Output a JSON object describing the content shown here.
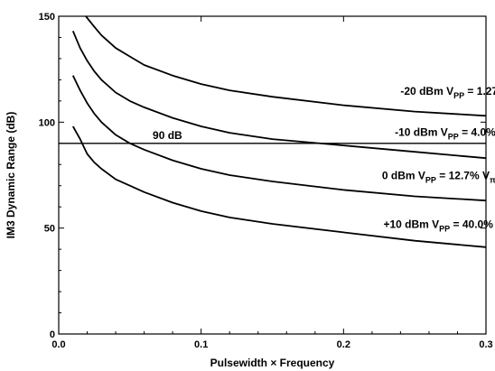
{
  "chart_data": {
    "type": "line",
    "xlabel": "Pulsewidth × Frequency",
    "ylabel": "IM3 Dynamic Range (dB)",
    "xlim": [
      0.0,
      0.3
    ],
    "ylim": [
      0,
      150
    ],
    "xticks": [
      0.0,
      0.1,
      0.2,
      0.3
    ],
    "xtick_labels": [
      "0.0",
      "0.1",
      "0.2",
      "0.3"
    ],
    "yticks": [
      0,
      50,
      100,
      150
    ],
    "ytick_labels": [
      "0",
      "50",
      "100",
      "150"
    ],
    "grid": false,
    "reference_line": {
      "y": 90,
      "label": "90 dB"
    },
    "series": [
      {
        "label": {
          "main": "-20 dBm  V",
          "sub": "PP",
          "mid": " = 1.27% V",
          "sub2": "π"
        },
        "x": [
          0.019,
          0.025,
          0.03,
          0.04,
          0.05,
          0.06,
          0.08,
          0.1,
          0.12,
          0.15,
          0.2,
          0.25,
          0.3
        ],
        "y": [
          150,
          145,
          141,
          135,
          131,
          127,
          122,
          118,
          115,
          112,
          108,
          105,
          103
        ]
      },
      {
        "label": {
          "main": "-10 dBm  V",
          "sub": "PP",
          "mid": " = 4.0% V",
          "sub2": "π"
        },
        "x": [
          0.01,
          0.015,
          0.02,
          0.025,
          0.03,
          0.04,
          0.05,
          0.06,
          0.08,
          0.1,
          0.12,
          0.15,
          0.2,
          0.25,
          0.3
        ],
        "y": [
          143,
          135,
          129,
          124,
          120,
          114,
          110,
          107,
          102,
          98,
          95,
          92,
          89,
          86,
          83
        ]
      },
      {
        "label": {
          "main": "0 dBm  V",
          "sub": "PP",
          "mid": " = 12.7% V",
          "sub2": "π"
        },
        "x": [
          0.01,
          0.015,
          0.02,
          0.025,
          0.03,
          0.04,
          0.05,
          0.06,
          0.08,
          0.1,
          0.12,
          0.15,
          0.2,
          0.25,
          0.3
        ],
        "y": [
          122,
          115,
          109,
          104,
          100,
          94,
          90,
          87,
          82,
          78,
          75,
          72,
          68,
          65,
          63
        ]
      },
      {
        "label": {
          "main": "+10 dBm  V",
          "sub": "PP",
          "mid": " = 40.0% V",
          "sub2": "π"
        },
        "x": [
          0.01,
          0.015,
          0.02,
          0.025,
          0.03,
          0.04,
          0.05,
          0.06,
          0.08,
          0.1,
          0.12,
          0.15,
          0.2,
          0.25,
          0.3
        ],
        "y": [
          98,
          92,
          85,
          81,
          78,
          73,
          70,
          67,
          62,
          58,
          55,
          52,
          48,
          44,
          41
        ]
      }
    ],
    "annotation_anchors": [
      {
        "x": 0.24,
        "y": 113
      },
      {
        "x": 0.236,
        "y": 93.5
      },
      {
        "x": 0.227,
        "y": 73
      },
      {
        "x": 0.228,
        "y": 50
      }
    ],
    "reference_label_anchor": {
      "x": 0.066,
      "y": 92
    }
  }
}
